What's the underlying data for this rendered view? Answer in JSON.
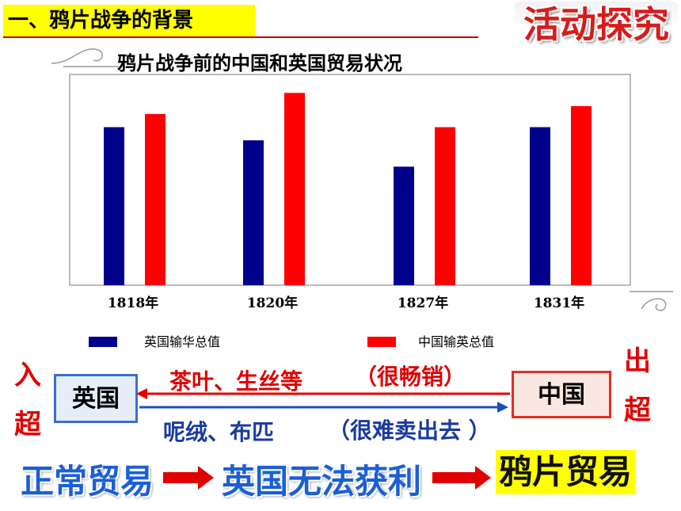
{
  "header": {
    "section_title": "一、鸦片战争的背景",
    "activity_tag": "活动探究"
  },
  "chart_data": {
    "type": "bar",
    "title": "鸦片战争前的中国和英国贸易状况",
    "categories": [
      "1818年",
      "1820年",
      "1827年",
      "1831年"
    ],
    "series": [
      {
        "name": "英国输华总值",
        "color": "#00008b",
        "values": [
          6,
          5.5,
          4.5,
          6
        ]
      },
      {
        "name": "中国输英总值",
        "color": "#ff0000",
        "values": [
          6.5,
          7.3,
          6,
          6.8
        ]
      }
    ],
    "ylim": [
      0,
      8
    ],
    "grid": false,
    "legend_position": "bottom"
  },
  "trade": {
    "left_side": [
      "入",
      "超"
    ],
    "right_side": [
      "出",
      "超"
    ],
    "uk_label": "英国",
    "china_label": "中国",
    "china_to_uk_goods": "茶叶、生丝等",
    "china_to_uk_note": "（很畅销）",
    "uk_to_china_goods": "呢绒、布匹",
    "uk_to_china_note": "（很难卖出去 ）"
  },
  "flow": {
    "step1": "正常贸易",
    "step2": "英国无法获利",
    "step3": "鸦片贸易"
  },
  "colors": {
    "uk_bar": "#00008b",
    "china_bar": "#ff0000",
    "highlight": "#ffff00",
    "flow_blue": "#1a5fd6"
  }
}
